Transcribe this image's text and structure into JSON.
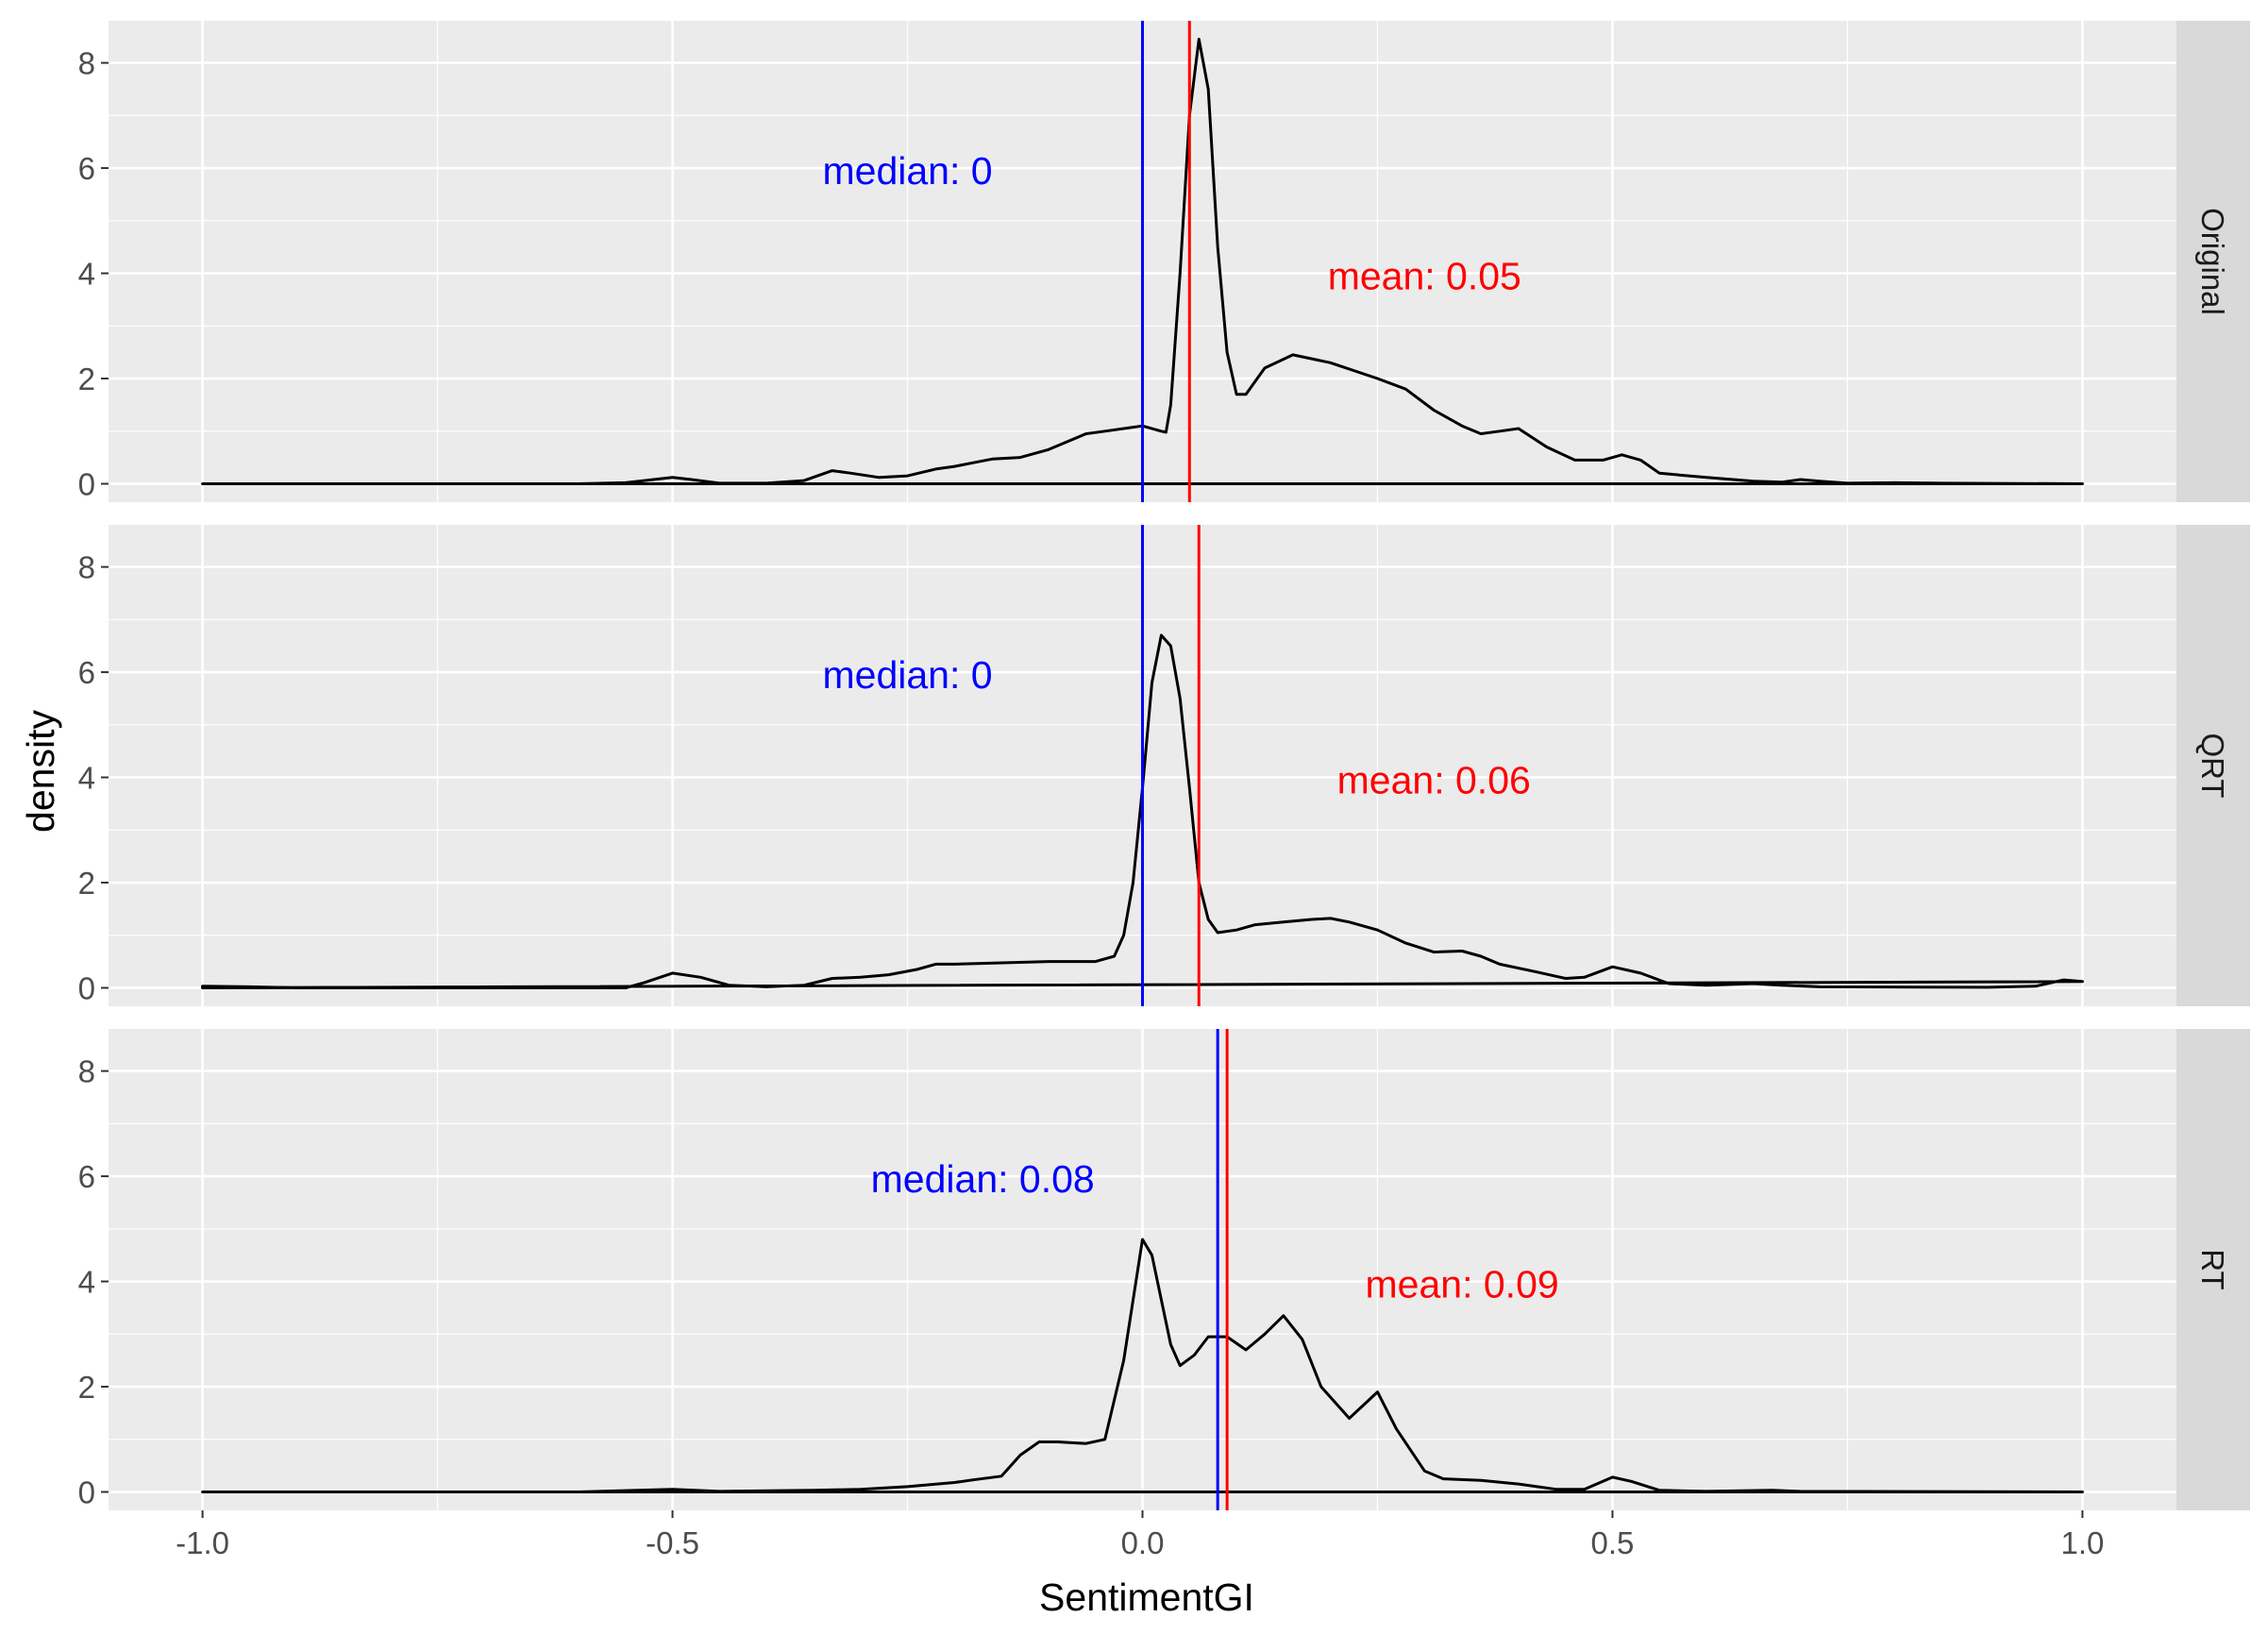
{
  "chart_data": {
    "type": "line",
    "xlabel": "SentimentGI",
    "ylabel": "density",
    "xlim": [
      -1.1,
      1.1
    ],
    "ylim": [
      -0.35,
      8.8
    ],
    "x_ticks": [
      -1.0,
      -0.5,
      0.0,
      0.5,
      1.0
    ],
    "x_tick_labels": [
      "-1.0",
      "-0.5",
      "0.0",
      "0.5",
      "1.0"
    ],
    "y_ticks": [
      0,
      2,
      4,
      6,
      8
    ],
    "y_tick_labels": [
      "0",
      "2",
      "4",
      "6",
      "8"
    ],
    "grid": true,
    "colors": {
      "panel_bg": "#EBEBEB",
      "strip_bg": "#D9D9D9",
      "grid": "#FFFFFF",
      "density": "#000000",
      "median": "#0000FF",
      "mean": "#FF0000"
    },
    "panels": [
      {
        "facet": "Original",
        "median": 0,
        "mean": 0.05,
        "median_label": "median: 0",
        "mean_label": "mean: 0.05",
        "median_label_at": [
          -0.25,
          5.95
        ],
        "mean_label_at": [
          0.3,
          3.95
        ],
        "density": [
          [
            -1.0,
            0
          ],
          [
            -0.6,
            0
          ],
          [
            -0.55,
            0.02
          ],
          [
            -0.52,
            0.08
          ],
          [
            -0.5,
            0.12
          ],
          [
            -0.48,
            0.08
          ],
          [
            -0.45,
            0.01
          ],
          [
            -0.4,
            0.01
          ],
          [
            -0.36,
            0.06
          ],
          [
            -0.33,
            0.25
          ],
          [
            -0.31,
            0.2
          ],
          [
            -0.28,
            0.12
          ],
          [
            -0.25,
            0.15
          ],
          [
            -0.22,
            0.28
          ],
          [
            -0.2,
            0.33
          ],
          [
            -0.18,
            0.4
          ],
          [
            -0.16,
            0.47
          ],
          [
            -0.13,
            0.5
          ],
          [
            -0.1,
            0.65
          ],
          [
            -0.08,
            0.8
          ],
          [
            -0.06,
            0.95
          ],
          [
            -0.04,
            1.0
          ],
          [
            -0.02,
            1.05
          ],
          [
            0.0,
            1.1
          ],
          [
            0.02,
            1.0
          ],
          [
            0.025,
            0.98
          ],
          [
            0.03,
            1.5
          ],
          [
            0.04,
            4.0
          ],
          [
            0.05,
            7.0
          ],
          [
            0.06,
            8.45
          ],
          [
            0.07,
            7.5
          ],
          [
            0.08,
            4.5
          ],
          [
            0.09,
            2.5
          ],
          [
            0.1,
            1.7
          ],
          [
            0.11,
            1.7
          ],
          [
            0.13,
            2.2
          ],
          [
            0.16,
            2.45
          ],
          [
            0.2,
            2.3
          ],
          [
            0.25,
            2.0
          ],
          [
            0.28,
            1.8
          ],
          [
            0.31,
            1.4
          ],
          [
            0.34,
            1.1
          ],
          [
            0.36,
            0.95
          ],
          [
            0.38,
            1.0
          ],
          [
            0.4,
            1.05
          ],
          [
            0.43,
            0.7
          ],
          [
            0.46,
            0.45
          ],
          [
            0.49,
            0.45
          ],
          [
            0.51,
            0.55
          ],
          [
            0.53,
            0.45
          ],
          [
            0.55,
            0.2
          ],
          [
            0.6,
            0.12
          ],
          [
            0.65,
            0.05
          ],
          [
            0.68,
            0.03
          ],
          [
            0.7,
            0.08
          ],
          [
            0.72,
            0.05
          ],
          [
            0.75,
            0.01
          ],
          [
            0.8,
            0.02
          ],
          [
            0.85,
            0.01
          ],
          [
            1.0,
            0
          ]
        ]
      },
      {
        "facet": "QRT",
        "median": 0,
        "mean": 0.06,
        "median_label": "median: 0",
        "mean_label": "mean: 0.06",
        "median_label_at": [
          -0.25,
          5.95
        ],
        "mean_label_at": [
          0.31,
          3.95
        ],
        "density": [
          [
            -1.0,
            0.03
          ],
          [
            -0.95,
            0.02
          ],
          [
            -0.9,
            0
          ],
          [
            -0.55,
            0
          ],
          [
            -0.53,
            0.1
          ],
          [
            -0.5,
            0.28
          ],
          [
            -0.47,
            0.2
          ],
          [
            -0.44,
            0.05
          ],
          [
            -0.4,
            0.02
          ],
          [
            -0.36,
            0.05
          ],
          [
            -0.33,
            0.18
          ],
          [
            -0.3,
            0.2
          ],
          [
            -0.27,
            0.25
          ],
          [
            -0.24,
            0.35
          ],
          [
            -0.22,
            0.45
          ],
          [
            -0.2,
            0.45
          ],
          [
            -0.1,
            0.5
          ],
          [
            -0.05,
            0.5
          ],
          [
            -0.03,
            0.6
          ],
          [
            -0.02,
            1.0
          ],
          [
            -0.01,
            2.0
          ],
          [
            0.0,
            3.8
          ],
          [
            0.01,
            5.8
          ],
          [
            0.02,
            6.7
          ],
          [
            0.03,
            6.5
          ],
          [
            0.04,
            5.5
          ],
          [
            0.05,
            3.8
          ],
          [
            0.06,
            2.0
          ],
          [
            0.07,
            1.3
          ],
          [
            0.08,
            1.05
          ],
          [
            0.1,
            1.1
          ],
          [
            0.12,
            1.2
          ],
          [
            0.15,
            1.25
          ],
          [
            0.18,
            1.3
          ],
          [
            0.2,
            1.32
          ],
          [
            0.22,
            1.25
          ],
          [
            0.25,
            1.1
          ],
          [
            0.28,
            0.85
          ],
          [
            0.31,
            0.68
          ],
          [
            0.34,
            0.7
          ],
          [
            0.36,
            0.6
          ],
          [
            0.38,
            0.45
          ],
          [
            0.42,
            0.3
          ],
          [
            0.45,
            0.18
          ],
          [
            0.47,
            0.2
          ],
          [
            0.5,
            0.4
          ],
          [
            0.53,
            0.28
          ],
          [
            0.56,
            0.08
          ],
          [
            0.6,
            0.05
          ],
          [
            0.65,
            0.08
          ],
          [
            0.68,
            0.05
          ],
          [
            0.72,
            0.02
          ],
          [
            0.9,
            0.01
          ],
          [
            0.95,
            0.03
          ],
          [
            0.98,
            0.15
          ],
          [
            1.0,
            0.12
          ]
        ]
      },
      {
        "facet": "RT",
        "median": 0.08,
        "mean": 0.09,
        "median_label": "median: 0.08",
        "mean_label": "mean: 0.09",
        "median_label_at": [
          -0.17,
          5.95
        ],
        "mean_label_at": [
          0.34,
          3.95
        ],
        "density": [
          [
            -1.0,
            0
          ],
          [
            -0.6,
            0
          ],
          [
            -0.5,
            0.05
          ],
          [
            -0.45,
            0.01
          ],
          [
            -0.35,
            0.03
          ],
          [
            -0.3,
            0.05
          ],
          [
            -0.25,
            0.1
          ],
          [
            -0.2,
            0.18
          ],
          [
            -0.18,
            0.23
          ],
          [
            -0.15,
            0.3
          ],
          [
            -0.13,
            0.7
          ],
          [
            -0.11,
            0.95
          ],
          [
            -0.09,
            0.95
          ],
          [
            -0.06,
            0.92
          ],
          [
            -0.04,
            1.0
          ],
          [
            -0.02,
            2.5
          ],
          [
            0.0,
            4.8
          ],
          [
            0.01,
            4.5
          ],
          [
            0.03,
            2.8
          ],
          [
            0.04,
            2.4
          ],
          [
            0.055,
            2.6
          ],
          [
            0.07,
            2.95
          ],
          [
            0.09,
            2.95
          ],
          [
            0.11,
            2.7
          ],
          [
            0.13,
            3.0
          ],
          [
            0.15,
            3.35
          ],
          [
            0.17,
            2.9
          ],
          [
            0.19,
            2.0
          ],
          [
            0.22,
            1.4
          ],
          [
            0.25,
            1.9
          ],
          [
            0.27,
            1.2
          ],
          [
            0.3,
            0.4
          ],
          [
            0.32,
            0.25
          ],
          [
            0.36,
            0.22
          ],
          [
            0.4,
            0.15
          ],
          [
            0.44,
            0.05
          ],
          [
            0.47,
            0.05
          ],
          [
            0.5,
            0.28
          ],
          [
            0.52,
            0.2
          ],
          [
            0.55,
            0.03
          ],
          [
            0.6,
            0.01
          ],
          [
            0.67,
            0.03
          ],
          [
            0.7,
            0.01
          ],
          [
            1.0,
            0
          ]
        ]
      }
    ]
  }
}
